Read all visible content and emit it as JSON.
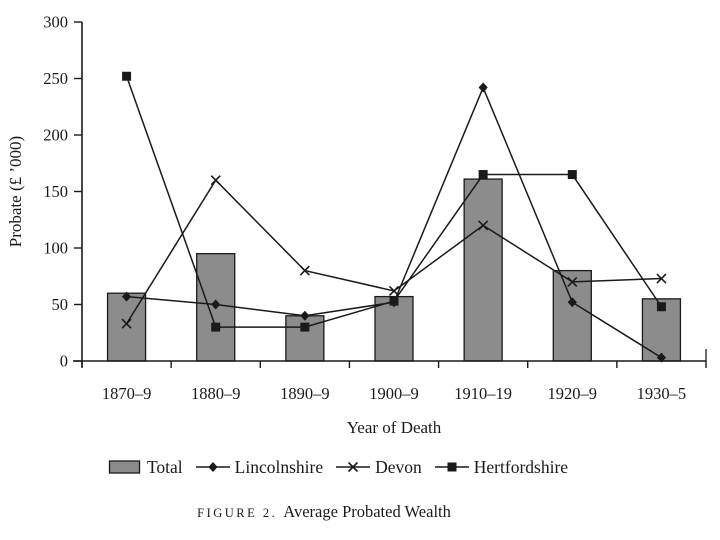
{
  "chart_data": {
    "type": "bar+line combo",
    "categories": [
      "1870–9",
      "1880–9",
      "1890–9",
      "1900–9",
      "1910–19",
      "1920–9",
      "1930–5"
    ],
    "bar_series": {
      "name": "Total",
      "values": [
        60,
        95,
        40,
        57,
        161,
        80,
        55
      ],
      "fill": "#8c8c8c"
    },
    "line_series": [
      {
        "name": "Lincolnshire",
        "marker": "diamond",
        "values": [
          57,
          50,
          40,
          52,
          242,
          52,
          3
        ]
      },
      {
        "name": "Devon",
        "marker": "x",
        "values": [
          33,
          160,
          80,
          62,
          120,
          70,
          73
        ]
      },
      {
        "name": "Hertfordshire",
        "marker": "square",
        "values": [
          252,
          30,
          30,
          53,
          165,
          165,
          48
        ]
      }
    ],
    "xlabel": "Year of Death",
    "ylabel": "Probate (£ ’000)",
    "ylim": [
      0,
      300
    ],
    "ytick_step": 50,
    "ytick_labels": [
      "0",
      "50",
      "100",
      "150",
      "200",
      "250",
      "300"
    ],
    "grid": false,
    "legend_position": "bottom",
    "line_color": "#1a1a1a",
    "axis_color": "#1a1a1a"
  },
  "caption": {
    "label": "figure 2.",
    "title": "Average Probated Wealth"
  }
}
